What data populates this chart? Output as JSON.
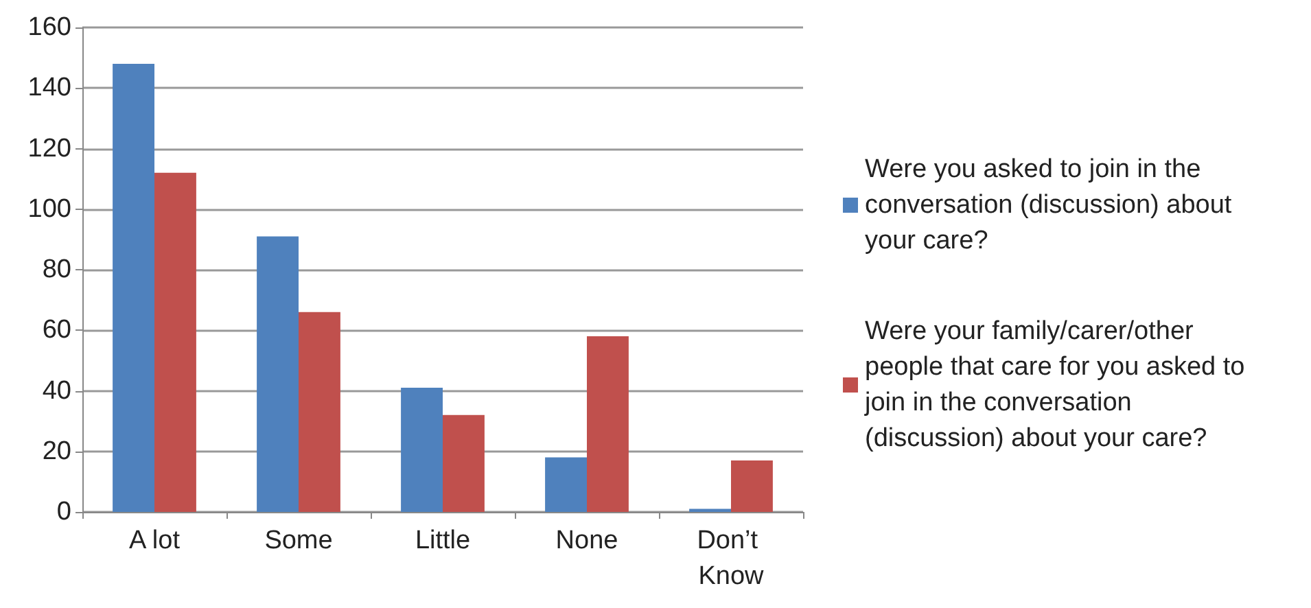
{
  "chart_data": {
    "type": "bar",
    "categories": [
      "A lot",
      "Some",
      "Little",
      "None",
      "Don’t Know"
    ],
    "series": [
      {
        "name": "Were you asked to join in the conversation (discussion) about your care?",
        "color": "#4f81bd",
        "values": [
          148,
          91,
          41,
          18,
          1
        ]
      },
      {
        "name": "Were your family/carer/other people that care for you asked to join in the conversation (discussion) about your care?",
        "color": "#c0504d",
        "values": [
          112,
          66,
          32,
          58,
          17
        ]
      }
    ],
    "ylim": [
      0,
      160
    ],
    "yticks": [
      0,
      20,
      40,
      60,
      80,
      100,
      120,
      140,
      160
    ],
    "grid": "y",
    "legend": "right"
  }
}
